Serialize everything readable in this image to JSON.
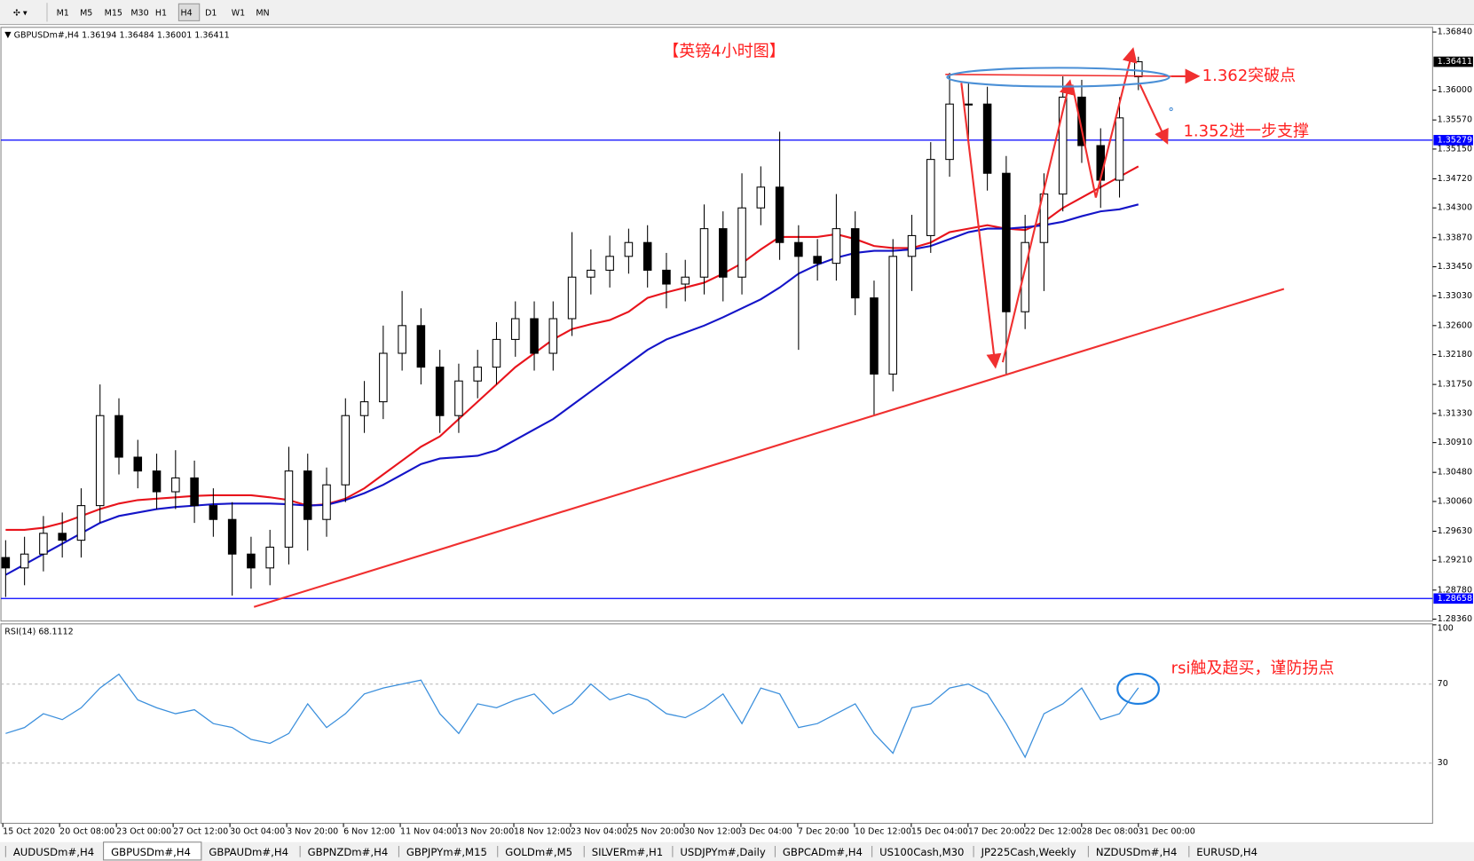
{
  "toolbar": {
    "timeframes": [
      "M1",
      "M5",
      "M15",
      "M30",
      "H1",
      "H4",
      "D1",
      "W1",
      "MN"
    ],
    "active": 5
  },
  "tabs": {
    "items": [
      "AUDUSDm#,H4",
      "GBPUSDm#,H4",
      "GBPAUDm#,H4",
      "GBPNZDm#,H4",
      "GBPJPYm#,M15",
      "GOLDm#,M5",
      "SILVERm#,H1",
      "USDJPYm#,Daily",
      "GBPCADm#,H4",
      "US100Cash,M30",
      "JP225Cash,Weekly",
      "NZDUSDm#,H4",
      "EURUSD,H4"
    ],
    "active": 1
  },
  "chart_data": [
    {
      "type": "candlestick",
      "title": "GBPUSDm#,H4",
      "categories": [
        "15 Oct 2020",
        null,
        null,
        "20 Oct 08:00",
        null,
        null,
        "23 Oct 00:00",
        null,
        null,
        "27 Oct 12:00",
        null,
        null,
        "30 Oct 04:00",
        null,
        null,
        "3 Nov 20:00",
        null,
        null,
        "6 Nov 12:00",
        null,
        null,
        "11 Nov 04:00",
        null,
        null,
        "13 Nov 20:00",
        null,
        null,
        "18 Nov 12:00",
        null,
        null,
        "23 Nov 04:00",
        null,
        null,
        "25 Nov 20:00",
        null,
        null,
        "30 Nov 12:00",
        null,
        null,
        "3 Dec 04:00",
        null,
        null,
        "7 Dec 20:00",
        null,
        null,
        "10 Dec 12:00",
        null,
        null,
        "15 Dec 04:00",
        null,
        null,
        "17 Dec 20:00",
        null,
        null,
        "22 Dec 12:00",
        null,
        null,
        "28 Dec 08:00",
        null,
        null,
        "31 Dec 00:00"
      ],
      "open": [
        1.2925,
        1.291,
        1.293,
        1.296,
        1.295,
        1.3,
        1.313,
        1.307,
        1.305,
        1.302,
        1.304,
        1.3,
        1.298,
        1.293,
        1.291,
        1.294,
        1.305,
        1.298,
        1.303,
        1.313,
        1.315,
        1.322,
        1.326,
        1.32,
        1.313,
        1.318,
        1.32,
        1.324,
        1.327,
        1.322,
        1.327,
        1.333,
        1.334,
        1.336,
        1.338,
        1.334,
        1.332,
        1.333,
        1.34,
        1.333,
        1.343,
        1.346,
        1.338,
        1.336,
        1.335,
        1.34,
        1.33,
        1.319,
        1.336,
        1.339,
        1.35,
        1.358,
        1.358,
        1.348,
        1.328,
        1.338,
        1.345,
        1.359,
        1.352,
        1.347,
        1.36194
      ],
      "high": [
        1.295,
        1.2955,
        1.2985,
        1.299,
        1.3025,
        1.3175,
        1.3155,
        1.3095,
        1.3075,
        1.308,
        1.3065,
        1.3025,
        1.3005,
        1.2955,
        1.2965,
        1.3085,
        1.3075,
        1.3055,
        1.3155,
        1.318,
        1.326,
        1.331,
        1.3285,
        1.3225,
        1.3205,
        1.3225,
        1.3265,
        1.3295,
        1.3295,
        1.3295,
        1.3395,
        1.337,
        1.339,
        1.34,
        1.3405,
        1.3365,
        1.3355,
        1.3435,
        1.3425,
        1.348,
        1.349,
        1.354,
        1.3405,
        1.3385,
        1.345,
        1.3425,
        1.3325,
        1.3385,
        1.342,
        1.3525,
        1.3625,
        1.361,
        1.3605,
        1.3505,
        1.342,
        1.348,
        1.362,
        1.3615,
        1.3545,
        1.359,
        1.36484
      ],
      "low": [
        1.2868,
        1.2885,
        1.2905,
        1.2925,
        1.2925,
        1.2975,
        1.3045,
        1.3025,
        1.2995,
        1.2995,
        1.2975,
        1.2955,
        1.287,
        1.288,
        1.2885,
        1.2915,
        1.2935,
        1.2955,
        1.3005,
        1.3105,
        1.3125,
        1.3195,
        1.3175,
        1.3105,
        1.3105,
        1.3155,
        1.3175,
        1.3215,
        1.3195,
        1.3195,
        1.3245,
        1.3305,
        1.3315,
        1.3335,
        1.3315,
        1.3285,
        1.3295,
        1.3305,
        1.3295,
        1.3305,
        1.3405,
        1.3355,
        1.3225,
        1.3325,
        1.3325,
        1.3275,
        1.313,
        1.3165,
        1.331,
        1.3365,
        1.3475,
        1.353,
        1.3455,
        1.319,
        1.3255,
        1.331,
        1.3425,
        1.3495,
        1.343,
        1.3445,
        1.36001
      ],
      "close": [
        1.291,
        1.293,
        1.296,
        1.295,
        1.3,
        1.313,
        1.307,
        1.305,
        1.302,
        1.304,
        1.3,
        1.298,
        1.293,
        1.291,
        1.294,
        1.305,
        1.298,
        1.303,
        1.313,
        1.315,
        1.322,
        1.326,
        1.32,
        1.313,
        1.318,
        1.32,
        1.324,
        1.327,
        1.322,
        1.327,
        1.333,
        1.334,
        1.336,
        1.338,
        1.334,
        1.332,
        1.333,
        1.34,
        1.333,
        1.343,
        1.346,
        1.338,
        1.336,
        1.335,
        1.34,
        1.33,
        1.319,
        1.336,
        1.339,
        1.35,
        1.358,
        1.358,
        1.348,
        1.328,
        1.338,
        1.345,
        1.359,
        1.352,
        1.347,
        1.356,
        1.36411
      ],
      "lines": [
        {
          "color": "#e8141c",
          "values": [
            1.2965,
            1.2965,
            1.2968,
            1.2975,
            1.2985,
            1.2995,
            1.3003,
            1.3008,
            1.301,
            1.3012,
            1.3014,
            1.3015,
            1.3015,
            1.3015,
            1.3012,
            1.3008,
            1.3,
            1.3002,
            1.301,
            1.3025,
            1.3045,
            1.3065,
            1.3085,
            1.31,
            1.3125,
            1.315,
            1.3175,
            1.32,
            1.322,
            1.324,
            1.3255,
            1.3262,
            1.3268,
            1.328,
            1.33,
            1.3308,
            1.3315,
            1.3322,
            1.3335,
            1.335,
            1.337,
            1.3388,
            1.3388,
            1.3388,
            1.3392,
            1.3385,
            1.3375,
            1.3372,
            1.3372,
            1.338,
            1.3395,
            1.34,
            1.3405,
            1.34,
            1.3398,
            1.341,
            1.343,
            1.3445,
            1.346,
            1.3475,
            1.349
          ]
        },
        {
          "color": "#1414c8",
          "values": [
            1.29,
            1.2915,
            1.293,
            1.2945,
            1.296,
            1.2975,
            1.2985,
            1.299,
            1.2995,
            1.2998,
            1.3,
            1.3002,
            1.3003,
            1.3003,
            1.3003,
            1.3002,
            1.3,
            1.3001,
            1.3008,
            1.3018,
            1.303,
            1.3045,
            1.306,
            1.3068,
            1.307,
            1.3072,
            1.308,
            1.3095,
            1.311,
            1.3125,
            1.3145,
            1.3165,
            1.3185,
            1.3205,
            1.3225,
            1.324,
            1.325,
            1.326,
            1.3272,
            1.3285,
            1.3298,
            1.3315,
            1.3335,
            1.3348,
            1.3358,
            1.3365,
            1.3368,
            1.3368,
            1.337,
            1.3375,
            1.3385,
            1.3395,
            1.34,
            1.34,
            1.3402,
            1.3405,
            1.341,
            1.3418,
            1.3425,
            1.3428,
            1.3435
          ]
        }
      ],
      "levels": [
        {
          "value": 1.35279,
          "color": "#0000ff"
        },
        {
          "value": 1.28658,
          "color": "#0000ff"
        }
      ],
      "ylim": [
        1.28333,
        1.36908
      ],
      "yticks": [
        {
          "value": 1.3684,
          "label": "1.36840"
        },
        {
          "value": 1.36,
          "label": "1.36000"
        },
        {
          "value": 1.3557,
          "label": "1.35570"
        },
        {
          "value": 1.3515,
          "label": "1.35150"
        },
        {
          "value": 1.3472,
          "label": "1.34720"
        },
        {
          "value": 1.343,
          "label": "1.34300"
        },
        {
          "value": 1.3387,
          "label": "1.33870"
        },
        {
          "value": 1.3345,
          "label": "1.33450"
        },
        {
          "value": 1.3303,
          "label": "1.33030"
        },
        {
          "value": 1.326,
          "label": "1.32600"
        },
        {
          "value": 1.3218,
          "label": "1.32180"
        },
        {
          "value": 1.3175,
          "label": "1.31750"
        },
        {
          "value": 1.3133,
          "label": "1.31330"
        },
        {
          "value": 1.3091,
          "label": "1.30910"
        },
        {
          "value": 1.3048,
          "label": "1.30480"
        },
        {
          "value": 1.3006,
          "label": "1.30060"
        },
        {
          "value": 1.2963,
          "label": "1.29630"
        },
        {
          "value": 1.2921,
          "label": "1.29210"
        },
        {
          "value": 1.2878,
          "label": "1.28780"
        },
        {
          "value": 1.2836,
          "label": "1.28360"
        }
      ],
      "grid": false,
      "annotations": [
        "【英镑4小时图】",
        "1.362突破点",
        "1.352进一步支撑",
        "rsi触及超买，谨防拐点"
      ]
    },
    {
      "type": "line",
      "title": "RSI(14)",
      "color": "#3b8fdc",
      "values": [
        45,
        48,
        55,
        52,
        58,
        68,
        75,
        62,
        58,
        55,
        57,
        50,
        48,
        42,
        40,
        45,
        60,
        48,
        55,
        65,
        68,
        70,
        72,
        55,
        45,
        60,
        58,
        62,
        65,
        55,
        60,
        70,
        62,
        65,
        62,
        55,
        53,
        58,
        65,
        50,
        68,
        65,
        48,
        50,
        55,
        60,
        45,
        35,
        58,
        60,
        68,
        70,
        65,
        50,
        33,
        55,
        60,
        68,
        52,
        55,
        68.1112
      ],
      "ylim": [
        0,
        100
      ],
      "yticks": [
        30,
        70,
        100
      ]
    }
  ]
}
